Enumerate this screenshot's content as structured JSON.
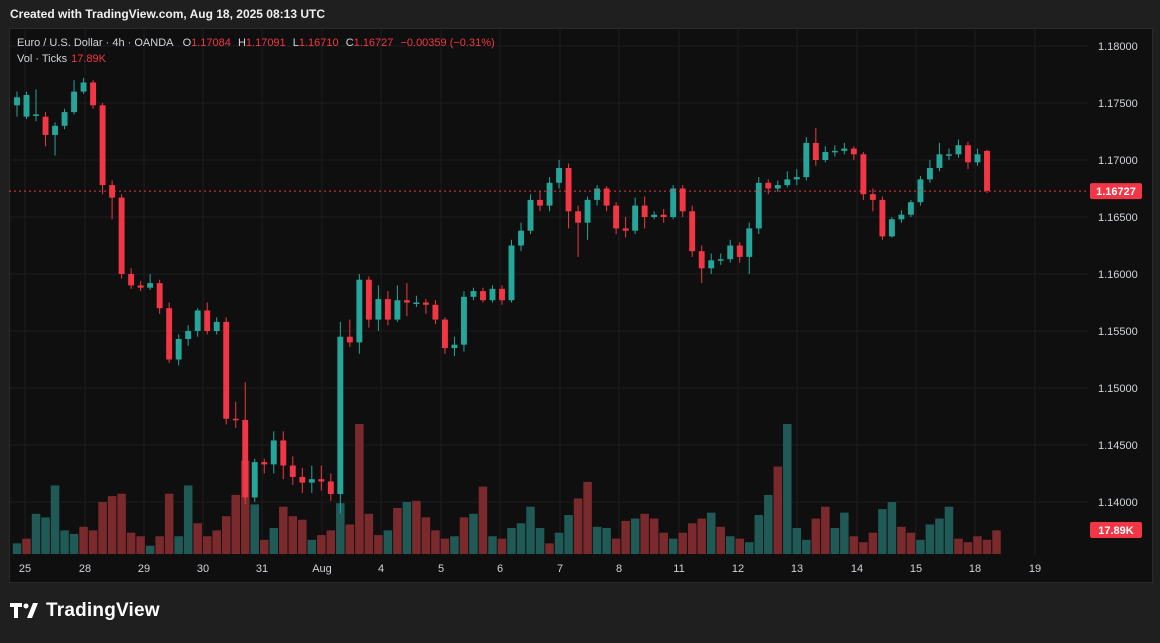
{
  "header": {
    "created_text": "Created with TradingView.com, Aug 18, 2025 08:13 UTC"
  },
  "legend": {
    "symbol": "Euro / U.S. Dollar · 4h · OANDA",
    "o_label": "O",
    "o_value": "1.17084",
    "h_label": "H",
    "h_value": "1.17091",
    "l_label": "L",
    "l_value": "1.16710",
    "c_label": "C",
    "c_value": "1.16727",
    "change": "−0.00359 (−0.31%)",
    "vol_label": "Vol · Ticks",
    "vol_value": "17.89K"
  },
  "footer": {
    "brand": "TradingView"
  },
  "colors": {
    "up": "#26a69a",
    "down": "#f23645",
    "vol_up": "#1f5a57",
    "vol_down": "#7a2a2c",
    "grid": "#1c1c1c",
    "axis_text": "#d1d4dc",
    "price_line": "#f23645"
  },
  "chart_data": {
    "type": "candlestick",
    "instrument": "Euro / U.S. Dollar",
    "timeframe": "4h",
    "exchange": "OANDA",
    "y_axis": {
      "ticks": [
        "1.18000",
        "1.17500",
        "1.17000",
        "1.16500",
        "1.16000",
        "1.15500",
        "1.15000",
        "1.14500",
        "1.14000"
      ],
      "range": [
        1.1355,
        1.1818
      ]
    },
    "x_axis": {
      "ticks": [
        "25",
        "28",
        "29",
        "30",
        "31",
        "Aug",
        "4",
        "5",
        "6",
        "7",
        "8",
        "11",
        "12",
        "13",
        "14",
        "15",
        "18",
        "19"
      ]
    },
    "last_price_label": "1.16727",
    "last_volume_label": "17.89K",
    "candles": [
      [
        1.1748,
        1.1755,
        1.1738,
        1.176
      ],
      [
        1.1738,
        1.1757,
        1.1736,
        1.176
      ],
      [
        1.174,
        1.174,
        1.1734,
        1.1762
      ],
      [
        1.1738,
        1.1722,
        1.1712,
        1.1742
      ],
      [
        1.1722,
        1.173,
        1.1704,
        1.1733
      ],
      [
        1.173,
        1.1742,
        1.1727,
        1.1745
      ],
      [
        1.1742,
        1.176,
        1.174,
        1.177
      ],
      [
        1.176,
        1.1768,
        1.1758,
        1.1772
      ],
      [
        1.1768,
        1.1748,
        1.1745,
        1.177
      ],
      [
        1.1748,
        1.1678,
        1.167,
        1.175
      ],
      [
        1.1678,
        1.1667,
        1.1648,
        1.1682
      ],
      [
        1.1667,
        1.16,
        1.1596,
        1.167
      ],
      [
        1.16,
        1.159,
        1.1587,
        1.1605
      ],
      [
        1.159,
        1.1588,
        1.1585,
        1.1594
      ],
      [
        1.1588,
        1.1592,
        1.1586,
        1.16
      ],
      [
        1.1592,
        1.157,
        1.1565,
        1.1595
      ],
      [
        1.157,
        1.1525,
        1.1522,
        1.1575
      ],
      [
        1.1525,
        1.1543,
        1.152,
        1.1547
      ],
      [
        1.1543,
        1.155,
        1.1537,
        1.1555
      ],
      [
        1.155,
        1.1568,
        1.1545,
        1.157
      ],
      [
        1.1568,
        1.155,
        1.1547,
        1.1575
      ],
      [
        1.155,
        1.1558,
        1.1547,
        1.1562
      ],
      [
        1.1558,
        1.1473,
        1.1468,
        1.1562
      ],
      [
        1.1473,
        1.1472,
        1.1465,
        1.1488
      ],
      [
        1.1472,
        1.1404,
        1.1398,
        1.1505
      ],
      [
        1.1404,
        1.1435,
        1.14,
        1.1438
      ],
      [
        1.1435,
        1.1433,
        1.1425,
        1.1438
      ],
      [
        1.1433,
        1.1454,
        1.1425,
        1.1462
      ],
      [
        1.1454,
        1.1432,
        1.142,
        1.1462
      ],
      [
        1.1432,
        1.1422,
        1.1415,
        1.144
      ],
      [
        1.1422,
        1.1417,
        1.1408,
        1.143
      ],
      [
        1.1417,
        1.142,
        1.1408,
        1.1432
      ],
      [
        1.142,
        1.1418,
        1.141,
        1.1432
      ],
      [
        1.1418,
        1.1407,
        1.1401,
        1.1425
      ],
      [
        1.1407,
        1.1545,
        1.139,
        1.1558
      ],
      [
        1.1545,
        1.154,
        1.1536,
        1.156
      ],
      [
        1.154,
        1.1595,
        1.153,
        1.16
      ],
      [
        1.1595,
        1.156,
        1.1553,
        1.1598
      ],
      [
        1.156,
        1.1578,
        1.155,
        1.159
      ],
      [
        1.1578,
        1.156,
        1.1555,
        1.1585
      ],
      [
        1.156,
        1.1577,
        1.1558,
        1.159
      ],
      [
        1.1577,
        1.1575,
        1.1563,
        1.1592
      ],
      [
        1.1575,
        1.1575,
        1.1571,
        1.1581
      ],
      [
        1.1575,
        1.1573,
        1.1565,
        1.1578
      ],
      [
        1.1573,
        1.156,
        1.1556,
        1.1577
      ],
      [
        1.156,
        1.1535,
        1.153,
        1.1562
      ],
      [
        1.1535,
        1.1538,
        1.1528,
        1.1545
      ],
      [
        1.1538,
        1.158,
        1.1532,
        1.1585
      ],
      [
        1.158,
        1.1585,
        1.1577,
        1.1588
      ],
      [
        1.1585,
        1.1577,
        1.1575,
        1.1588
      ],
      [
        1.1577,
        1.1587,
        1.1575,
        1.159
      ],
      [
        1.1587,
        1.1577,
        1.1573,
        1.159
      ],
      [
        1.1577,
        1.1625,
        1.1575,
        1.163
      ],
      [
        1.1625,
        1.1638,
        1.162,
        1.1645
      ],
      [
        1.1638,
        1.1665,
        1.1635,
        1.167
      ],
      [
        1.1665,
        1.166,
        1.1655,
        1.1673
      ],
      [
        1.166,
        1.168,
        1.1655,
        1.1685
      ],
      [
        1.168,
        1.1693,
        1.1675,
        1.17
      ],
      [
        1.1693,
        1.1655,
        1.164,
        1.1697
      ],
      [
        1.1655,
        1.1645,
        1.1615,
        1.166
      ],
      [
        1.1645,
        1.1665,
        1.163,
        1.1668
      ],
      [
        1.1665,
        1.1675,
        1.166,
        1.1678
      ],
      [
        1.1675,
        1.166,
        1.1655,
        1.1677
      ],
      [
        1.166,
        1.164,
        1.1635,
        1.1663
      ],
      [
        1.164,
        1.1638,
        1.1632,
        1.165
      ],
      [
        1.1638,
        1.166,
        1.1635,
        1.1667
      ],
      [
        1.166,
        1.165,
        1.164,
        1.1668
      ],
      [
        1.165,
        1.1652,
        1.1648,
        1.1655
      ],
      [
        1.1652,
        1.165,
        1.1645,
        1.1657
      ],
      [
        1.165,
        1.1675,
        1.1648,
        1.1678
      ],
      [
        1.1675,
        1.1655,
        1.165,
        1.1678
      ],
      [
        1.1655,
        1.162,
        1.1615,
        1.166
      ],
      [
        1.162,
        1.1605,
        1.1592,
        1.1625
      ],
      [
        1.1605,
        1.1612,
        1.16,
        1.1618
      ],
      [
        1.1612,
        1.1613,
        1.1608,
        1.1618
      ],
      [
        1.1613,
        1.1625,
        1.161,
        1.163
      ],
      [
        1.1625,
        1.1615,
        1.161,
        1.1628
      ],
      [
        1.1615,
        1.164,
        1.16,
        1.1645
      ],
      [
        1.164,
        1.168,
        1.1635,
        1.1685
      ],
      [
        1.168,
        1.1675,
        1.167,
        1.1683
      ],
      [
        1.1675,
        1.1678,
        1.1672,
        1.1682
      ],
      [
        1.1678,
        1.1683,
        1.1676,
        1.169
      ],
      [
        1.1683,
        1.1685,
        1.1678,
        1.1692
      ],
      [
        1.1685,
        1.1715,
        1.1682,
        1.172
      ],
      [
        1.1715,
        1.17,
        1.1695,
        1.1728
      ],
      [
        1.17,
        1.1707,
        1.1698,
        1.1712
      ],
      [
        1.1707,
        1.1708,
        1.1703,
        1.1713
      ],
      [
        1.1708,
        1.171,
        1.1705,
        1.1715
      ],
      [
        1.171,
        1.1705,
        1.17,
        1.1712
      ],
      [
        1.1705,
        1.167,
        1.1665,
        1.1707
      ],
      [
        1.167,
        1.1665,
        1.1655,
        1.1675
      ],
      [
        1.1665,
        1.1633,
        1.163,
        1.1668
      ],
      [
        1.1633,
        1.1648,
        1.1632,
        1.165
      ],
      [
        1.1648,
        1.1652,
        1.1645,
        1.1656
      ],
      [
        1.1652,
        1.1663,
        1.165,
        1.1665
      ],
      [
        1.1663,
        1.1683,
        1.166,
        1.1686
      ],
      [
        1.1683,
        1.1693,
        1.168,
        1.17
      ],
      [
        1.1693,
        1.1705,
        1.169,
        1.1715
      ],
      [
        1.1705,
        1.1705,
        1.17,
        1.171
      ],
      [
        1.1705,
        1.1713,
        1.1702,
        1.1718
      ],
      [
        1.1713,
        1.1698,
        1.1692,
        1.1716
      ],
      [
        1.1698,
        1.1705,
        1.1695,
        1.171
      ],
      [
        1.1708,
        1.1673,
        1.1671,
        1.1709
      ]
    ],
    "volumes": [
      9,
      13,
      34,
      31,
      58,
      20,
      17,
      23,
      20,
      44,
      49,
      51,
      18,
      15,
      7,
      15,
      51,
      15,
      58,
      26,
      15,
      20,
      32,
      50,
      79,
      42,
      12,
      22,
      40,
      32,
      29,
      12,
      16,
      20,
      43,
      25,
      110,
      34,
      16,
      20,
      39,
      44,
      45,
      31,
      20,
      13,
      15,
      31,
      34,
      57,
      15,
      13,
      22,
      26,
      40,
      22,
      9,
      18,
      33,
      47,
      61,
      23,
      22,
      13,
      28,
      30,
      34,
      30,
      18,
      13,
      18,
      26,
      30,
      35,
      23,
      15,
      13,
      10,
      33,
      50,
      74,
      110,
      22,
      12,
      30,
      40,
      22,
      35,
      15,
      10,
      18,
      38,
      44,
      23,
      18,
      12,
      25,
      30,
      40,
      13,
      10,
      15,
      12,
      20
    ],
    "volume_up": [
      true,
      false,
      true,
      true,
      true,
      true,
      true,
      false,
      false,
      false,
      false,
      false,
      false,
      false,
      true,
      false,
      false,
      true,
      true,
      false,
      false,
      false,
      false,
      false,
      false,
      true,
      false,
      true,
      false,
      false,
      false,
      true,
      false,
      false,
      true,
      false,
      false,
      false,
      false,
      true,
      false,
      true,
      false,
      false,
      false,
      false,
      true,
      false,
      true,
      false,
      true,
      false,
      true,
      true,
      true,
      true,
      false,
      true,
      true,
      false,
      false,
      true,
      true,
      false,
      false,
      true,
      false,
      false,
      false,
      true,
      false,
      false,
      false,
      true,
      false,
      true,
      false,
      true,
      true,
      true,
      false,
      true,
      true,
      true,
      false,
      false,
      true,
      true,
      false,
      false,
      false,
      true,
      true,
      false,
      false,
      true,
      true,
      true,
      true,
      false,
      false,
      false,
      false,
      false
    ],
    "volume_max": 110
  }
}
